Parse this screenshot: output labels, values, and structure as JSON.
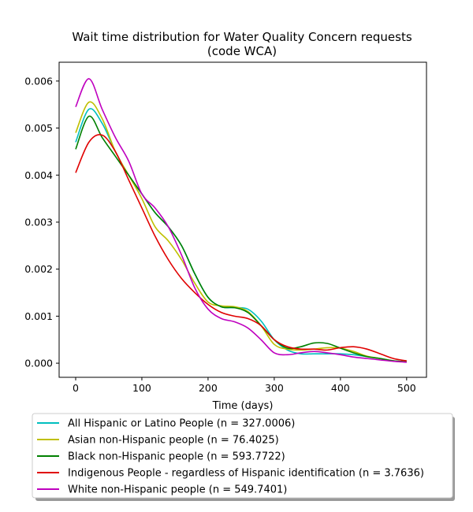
{
  "chart_data": {
    "type": "line",
    "title": "Wait time distribution  for Water Quality Concern  requests\n(code WCA)",
    "title_lines": [
      "Wait time distribution  for Water Quality Concern  requests",
      "(code WCA)"
    ],
    "xlabel": "Time (days)",
    "ylabel": "",
    "xlim": [
      -25,
      530
    ],
    "ylim": [
      -0.0003,
      0.0064
    ],
    "xticks": [
      0,
      100,
      200,
      300,
      400,
      500
    ],
    "xtick_labels": [
      "0",
      "100",
      "200",
      "300",
      "400",
      "500"
    ],
    "yticks": [
      0,
      0.001,
      0.002,
      0.003,
      0.004,
      0.005,
      0.006
    ],
    "ytick_labels": [
      "0.000",
      "0.001",
      "0.002",
      "0.003",
      "0.004",
      "0.005",
      "0.006"
    ],
    "grid": false,
    "legend_position": "below plot",
    "x": [
      0,
      20,
      40,
      60,
      80,
      100,
      120,
      140,
      160,
      180,
      200,
      220,
      240,
      260,
      280,
      300,
      320,
      340,
      360,
      380,
      400,
      420,
      440,
      460,
      480,
      500
    ],
    "series": [
      {
        "name": "All Hispanic or Latino People (n = 327.0006)",
        "color": "#00bfbf",
        "values": [
          0.0047,
          0.0054,
          0.0051,
          0.0045,
          0.004,
          0.0036,
          0.0032,
          0.0029,
          0.0025,
          0.0019,
          0.0014,
          0.0012,
          0.00118,
          0.00115,
          0.0009,
          0.0005,
          0.00028,
          0.0002,
          0.0002,
          0.0002,
          0.0002,
          0.00018,
          0.00014,
          0.0001,
          5e-05,
          3e-05
        ]
      },
      {
        "name": "Asian non-Hispanic people (n = 76.4025)",
        "color": "#bfbf00",
        "values": [
          0.0049,
          0.00555,
          0.0052,
          0.0045,
          0.004,
          0.0035,
          0.0029,
          0.0026,
          0.0022,
          0.0017,
          0.0013,
          0.00122,
          0.0012,
          0.0011,
          0.0008,
          0.0004,
          0.0003,
          0.00028,
          0.0003,
          0.00033,
          0.00032,
          0.00025,
          0.00015,
          0.0001,
          5e-05,
          3e-05
        ]
      },
      {
        "name": "Black non-Hispanic people (n = 593.7722)",
        "color": "#008000",
        "values": [
          0.00455,
          0.00525,
          0.0048,
          0.0044,
          0.004,
          0.0036,
          0.0032,
          0.0029,
          0.0025,
          0.0019,
          0.0014,
          0.0012,
          0.00118,
          0.00108,
          0.0008,
          0.0005,
          0.00032,
          0.00035,
          0.00043,
          0.00042,
          0.00032,
          0.00022,
          0.00014,
          0.0001,
          5e-05,
          3e-05
        ]
      },
      {
        "name": "Indigenous People - regardless of Hispanic identification (n = 3.7636)",
        "color": "#e00000",
        "values": [
          0.00405,
          0.0047,
          0.00485,
          0.0045,
          0.0039,
          0.0033,
          0.0027,
          0.0022,
          0.0018,
          0.0015,
          0.00125,
          0.00108,
          0.001,
          0.00095,
          0.0008,
          0.0005,
          0.00035,
          0.0003,
          0.0003,
          0.00028,
          0.00033,
          0.00035,
          0.0003,
          0.0002,
          0.0001,
          5e-05
        ]
      },
      {
        "name": "White non-Hispanic people (n = 549.7401)",
        "color": "#bf00bf",
        "values": [
          0.00545,
          0.00605,
          0.0054,
          0.0048,
          0.0043,
          0.0036,
          0.0033,
          0.0029,
          0.0023,
          0.0016,
          0.00115,
          0.00095,
          0.00088,
          0.00075,
          0.0005,
          0.00022,
          0.00018,
          0.00022,
          0.00025,
          0.00022,
          0.00018,
          0.00013,
          0.0001,
          7e-05,
          4e-05,
          2e-05
        ]
      }
    ]
  }
}
